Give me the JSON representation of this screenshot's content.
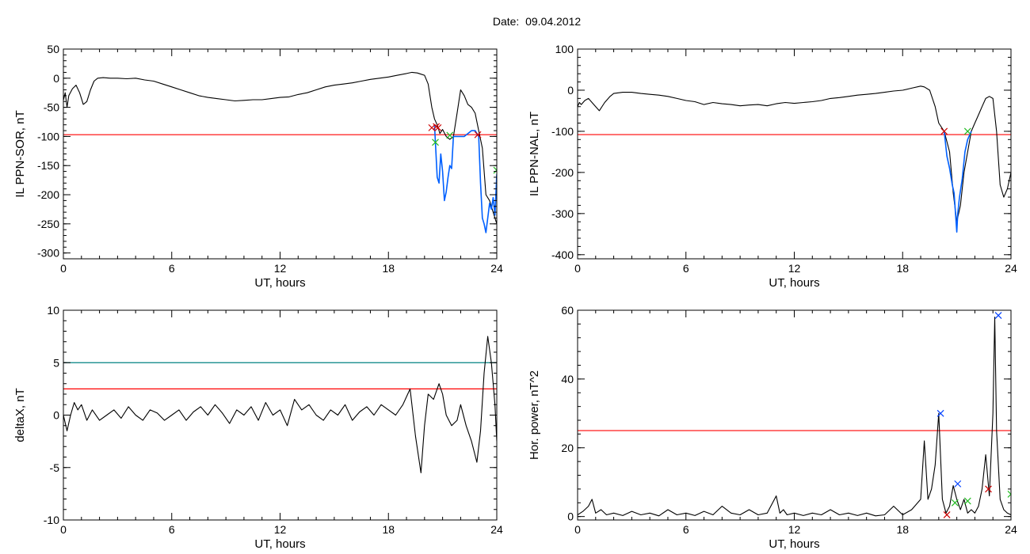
{
  "header": {
    "date_label": "Date:  09.04.2012"
  },
  "colors": {
    "trace": "#000000",
    "threshold": "#ff0000",
    "upper_threshold": "#008080",
    "event_segment": "#0060ff",
    "onset_marker": "#cc0000",
    "end_marker": "#22bb22",
    "peak_marker": "#0040ff"
  },
  "chart_data": [
    {
      "id": "il-ppn-sor",
      "type": "line",
      "xlabel": "UT, hours",
      "ylabel": "IL PPN-SOR, nT",
      "xlim": [
        0,
        24
      ],
      "ylim": [
        -310,
        50
      ],
      "xticks": [
        0,
        6,
        12,
        18,
        24
      ],
      "yticks": [
        50,
        0,
        -50,
        -100,
        -150,
        -200,
        -250,
        -300
      ],
      "thresholds": [
        {
          "value": -97,
          "color": "#ff0000"
        }
      ],
      "series": [
        {
          "role": "trace",
          "color": "#000000",
          "x": [
            0,
            0.1,
            0.2,
            0.3,
            0.5,
            0.7,
            0.9,
            1.1,
            1.3,
            1.5,
            1.7,
            1.9,
            2.2,
            2.6,
            3,
            3.5,
            4,
            4.5,
            5,
            5.5,
            6,
            6.5,
            7,
            7.5,
            8,
            8.5,
            9,
            9.5,
            10,
            10.5,
            11,
            11.5,
            12,
            12.5,
            13,
            13.5,
            14,
            14.5,
            15,
            15.5,
            16,
            16.5,
            17,
            17.5,
            18,
            18.5,
            19,
            19.3,
            19.6,
            19.8,
            20,
            20.2,
            20.4,
            20.55,
            20.7,
            20.85,
            21,
            21.2,
            21.4,
            21.6,
            21.8,
            22,
            22.2,
            22.4,
            22.6,
            22.8,
            23,
            23.2,
            23.4,
            23.6,
            23.8,
            24
          ],
          "y": [
            -38,
            -25,
            -50,
            -30,
            -18,
            -12,
            -25,
            -45,
            -40,
            -20,
            -5,
            0,
            1,
            0,
            0,
            -1,
            0,
            -3,
            -5,
            -10,
            -15,
            -20,
            -25,
            -30,
            -33,
            -35,
            -37,
            -39,
            -38,
            -37,
            -37,
            -35,
            -33,
            -32,
            -28,
            -25,
            -20,
            -15,
            -12,
            -10,
            -8,
            -5,
            -2,
            0,
            2,
            5,
            8,
            10,
            9,
            7,
            5,
            -10,
            -50,
            -70,
            -80,
            -95,
            -88,
            -100,
            -105,
            -100,
            -60,
            -20,
            -30,
            -45,
            -50,
            -60,
            -90,
            -120,
            -200,
            -210,
            -230,
            -250
          ]
        },
        {
          "role": "event",
          "color": "#0060ff",
          "x": [
            20.55,
            20.7,
            20.8,
            20.9,
            21,
            21.1,
            21.2,
            21.3,
            21.4,
            21.5,
            21.6,
            21.8,
            22,
            22.2,
            22.6,
            22.8,
            23,
            23.1,
            23.2,
            23.3,
            23.4,
            23.5,
            23.6,
            23.7,
            23.8,
            23.9,
            24
          ],
          "y": [
            -80,
            -170,
            -180,
            -130,
            -160,
            -210,
            -195,
            -170,
            -150,
            -155,
            -100,
            -100,
            -100,
            -100,
            -90,
            -90,
            -100,
            -180,
            -240,
            -250,
            -265,
            -240,
            -215,
            -225,
            -205,
            -235,
            -165
          ]
        },
        {
          "role": "onset",
          "marker": "x",
          "color": "#cc0000",
          "x": [
            20.4,
            20.65,
            20.75,
            22.95
          ],
          "y": [
            -85,
            -83,
            -85,
            -97
          ]
        },
        {
          "role": "end",
          "marker": "x",
          "color": "#22bb22",
          "x": [
            20.6,
            21.4,
            24
          ],
          "y": [
            -110,
            -98,
            -158
          ]
        }
      ]
    },
    {
      "id": "il-ppn-nal",
      "type": "line",
      "xlabel": "UT, hours",
      "ylabel": "IL PPN-NAL, nT",
      "xlim": [
        0,
        24
      ],
      "ylim": [
        -410,
        100
      ],
      "xticks": [
        0,
        6,
        12,
        18,
        24
      ],
      "yticks": [
        100,
        0,
        -100,
        -200,
        -300,
        -400
      ],
      "thresholds": [
        {
          "value": -108,
          "color": "#ff0000"
        }
      ],
      "series": [
        {
          "role": "trace",
          "color": "#000000",
          "x": [
            0,
            0.1,
            0.2,
            0.4,
            0.6,
            0.8,
            1,
            1.2,
            1.5,
            1.8,
            2,
            2.5,
            3,
            3.5,
            4,
            4.5,
            5,
            5.5,
            6,
            6.5,
            7,
            7.5,
            8,
            8.5,
            9,
            9.5,
            10,
            10.5,
            11,
            11.5,
            12,
            12.5,
            13,
            13.5,
            14,
            14.5,
            15,
            15.5,
            16,
            16.5,
            17,
            17.5,
            18,
            18.5,
            19,
            19.2,
            19.5,
            19.8,
            20,
            20.3,
            20.6,
            20.8,
            21,
            21.2,
            21.4,
            21.6,
            21.8,
            22,
            22.2,
            22.4,
            22.6,
            22.8,
            23,
            23.2,
            23.4,
            23.6,
            23.8,
            24
          ],
          "y": [
            -40,
            -30,
            -35,
            -25,
            -20,
            -30,
            -40,
            -50,
            -30,
            -15,
            -8,
            -5,
            -5,
            -8,
            -10,
            -12,
            -15,
            -20,
            -25,
            -28,
            -35,
            -30,
            -33,
            -35,
            -38,
            -36,
            -35,
            -38,
            -33,
            -30,
            -32,
            -30,
            -28,
            -25,
            -20,
            -18,
            -15,
            -12,
            -10,
            -8,
            -5,
            -2,
            0,
            5,
            10,
            8,
            0,
            -40,
            -80,
            -100,
            -150,
            -250,
            -320,
            -280,
            -200,
            -150,
            -100,
            -80,
            -60,
            -40,
            -20,
            -15,
            -20,
            -100,
            -230,
            -260,
            -240,
            -200
          ]
        },
        {
          "role": "event",
          "color": "#0060ff",
          "x": [
            20.3,
            20.45,
            20.6,
            20.75,
            20.85,
            21,
            21.05,
            21.15,
            21.3,
            21.45,
            21.6,
            21.8
          ],
          "y": [
            -100,
            -160,
            -190,
            -230,
            -250,
            -345,
            -300,
            -260,
            -215,
            -150,
            -120,
            -100
          ]
        },
        {
          "role": "onset",
          "marker": "x",
          "color": "#cc0000",
          "x": [
            20.3
          ],
          "y": [
            -100
          ]
        },
        {
          "role": "end",
          "marker": "x",
          "color": "#22bb22",
          "x": [
            21.6
          ],
          "y": [
            -100
          ]
        }
      ]
    },
    {
      "id": "deltax",
      "type": "line",
      "xlabel": "UT, hours",
      "ylabel": "deltaX, nT",
      "xlim": [
        0,
        24
      ],
      "ylim": [
        -10,
        10
      ],
      "xticks": [
        0,
        6,
        12,
        18,
        24
      ],
      "yticks": [
        10,
        5,
        0,
        -5,
        -10
      ],
      "thresholds": [
        {
          "value": 5,
          "color": "#008080"
        },
        {
          "value": 2.5,
          "color": "#ff0000"
        }
      ],
      "series": [
        {
          "role": "trace",
          "color": "#000000",
          "x": [
            0,
            0.2,
            0.4,
            0.6,
            0.8,
            1,
            1.3,
            1.6,
            2,
            2.4,
            2.8,
            3.2,
            3.6,
            4,
            4.4,
            4.8,
            5.2,
            5.6,
            6,
            6.4,
            6.8,
            7.2,
            7.6,
            8,
            8.4,
            8.8,
            9.2,
            9.6,
            10,
            10.4,
            10.8,
            11.2,
            11.6,
            12,
            12.4,
            12.8,
            13.2,
            13.6,
            14,
            14.4,
            14.8,
            15.2,
            15.6,
            16,
            16.4,
            16.8,
            17.2,
            17.6,
            18,
            18.4,
            18.8,
            19.2,
            19.5,
            19.8,
            20,
            20.2,
            20.5,
            20.8,
            21,
            21.2,
            21.5,
            21.8,
            22,
            22.3,
            22.6,
            22.9,
            23.1,
            23.3,
            23.5,
            23.7,
            23.9,
            24
          ],
          "y": [
            0,
            -1.5,
            0,
            1.2,
            0.5,
            1,
            -0.5,
            0.5,
            -0.5,
            0,
            0.5,
            -0.3,
            0.8,
            0,
            -0.5,
            0.5,
            0.2,
            -0.5,
            0,
            0.5,
            -0.5,
            0.3,
            0.8,
            0,
            1,
            0.2,
            -0.8,
            0.5,
            0,
            0.8,
            -0.5,
            1.2,
            0,
            0.5,
            -1,
            1.5,
            0.5,
            1,
            0,
            -0.5,
            0.5,
            0,
            1,
            -0.5,
            0.3,
            0.8,
            0,
            1,
            0.5,
            0,
            1,
            2.5,
            -2,
            -5.5,
            -1,
            2,
            1.5,
            3,
            2,
            0,
            -1,
            -0.5,
            1,
            -1,
            -2.5,
            -4.5,
            -1.5,
            4,
            7.5,
            5,
            1,
            -2.5
          ]
        }
      ]
    },
    {
      "id": "hor-power",
      "type": "line",
      "xlabel": "UT, hours",
      "ylabel": "Hor. power, nT^2",
      "xlim": [
        0,
        24
      ],
      "ylim": [
        -1,
        60
      ],
      "xticks": [
        0,
        6,
        12,
        18,
        24
      ],
      "yticks": [
        60,
        40,
        20,
        0
      ],
      "thresholds": [
        {
          "value": 25,
          "color": "#ff0000"
        }
      ],
      "series": [
        {
          "role": "trace",
          "color": "#000000",
          "x": [
            0,
            0.3,
            0.6,
            0.8,
            1,
            1.3,
            1.6,
            2,
            2.5,
            3,
            3.5,
            4,
            4.5,
            5,
            5.5,
            6,
            6.5,
            7,
            7.5,
            8,
            8.5,
            9,
            9.5,
            10,
            10.5,
            11,
            11.2,
            11.4,
            11.6,
            12,
            12.5,
            13,
            13.5,
            14,
            14.5,
            15,
            15.5,
            16,
            16.5,
            17,
            17.5,
            18,
            18.5,
            19,
            19.2,
            19.4,
            19.6,
            19.8,
            20,
            20.2,
            20.4,
            20.6,
            20.8,
            21,
            21.2,
            21.4,
            21.6,
            21.8,
            22,
            22.2,
            22.4,
            22.6,
            22.8,
            23,
            23.1,
            23.2,
            23.4,
            23.6,
            23.8,
            24
          ],
          "y": [
            0.5,
            1.5,
            3,
            5,
            1,
            2,
            0.5,
            1,
            0.3,
            1.5,
            0.5,
            1,
            0.2,
            2,
            0.5,
            1,
            0.3,
            1.5,
            0.5,
            3,
            1,
            0.5,
            2,
            0.5,
            1,
            6,
            1,
            2,
            0.5,
            1,
            0.3,
            1,
            0.5,
            2,
            0.5,
            1,
            0.3,
            1,
            0.2,
            0.5,
            3,
            0.5,
            2,
            5,
            22,
            5,
            8,
            15,
            30,
            5,
            1,
            3,
            9,
            5,
            2,
            5,
            1,
            2,
            1,
            3,
            8,
            18,
            6,
            30,
            58,
            25,
            5,
            2,
            1,
            0.5
          ]
        },
        {
          "role": "peak",
          "marker": "x",
          "color": "#0040ff",
          "x": [
            20.1,
            21.05,
            23.3
          ],
          "y": [
            30,
            9.5,
            58.5
          ]
        },
        {
          "role": "onset",
          "marker": "x",
          "color": "#cc0000",
          "x": [
            20.45,
            22.75
          ],
          "y": [
            0.5,
            8
          ]
        },
        {
          "role": "end",
          "marker": "x",
          "color": "#22bb22",
          "x": [
            20.9,
            21.6,
            24
          ],
          "y": [
            4,
            4.5,
            6.5
          ]
        }
      ]
    }
  ]
}
